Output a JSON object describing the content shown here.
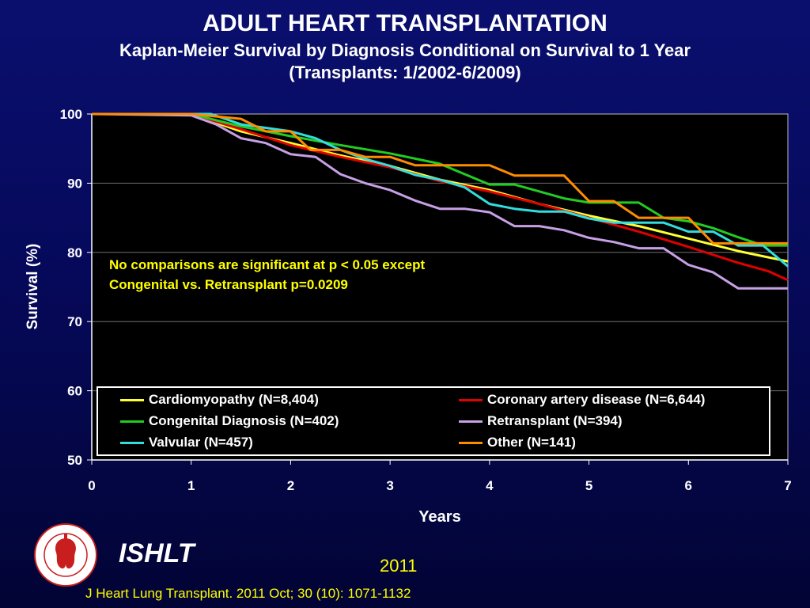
{
  "header": {
    "title": "ADULT HEART TRANSPLANTATION",
    "subtitle": "Kaplan-Meier Survival by Diagnosis Conditional on Survival to 1 Year",
    "subtitle2": "(Transplants: 1/2002-6/2009)"
  },
  "chart_data": {
    "type": "line",
    "xlabel": "Years",
    "ylabel": "Survival (%)",
    "xlim": [
      0,
      7
    ],
    "ylim": [
      50,
      100
    ],
    "xticks": [
      0,
      1,
      2,
      3,
      4,
      5,
      6,
      7
    ],
    "yticks": [
      50,
      60,
      70,
      80,
      90,
      100
    ],
    "grid": "horizontal",
    "legend_placement": "bottom",
    "annotation": [
      "No comparisons are significant at p < 0.05 except",
      "Congenital vs. Retransplant p=0.0209"
    ],
    "series": [
      {
        "name": "Cardiomyopathy  (N=8,404)",
        "color": "#ffff33",
        "x": [
          0,
          1,
          1.5,
          2,
          2.5,
          3,
          3.5,
          4,
          4.5,
          5,
          5.5,
          6,
          6.5,
          7
        ],
        "y": [
          100,
          100,
          97.5,
          95.8,
          94,
          92.5,
          90.5,
          89,
          87,
          85.3,
          83.8,
          82,
          80.2,
          78.7
        ]
      },
      {
        "name": "Coronary artery disease (N=6,644)",
        "color": "#e00000",
        "x": [
          0,
          1,
          1.5,
          2,
          2.5,
          3,
          3.5,
          4,
          4.5,
          5,
          5.5,
          6,
          6.5,
          6.8,
          7
        ],
        "y": [
          100,
          100,
          97.8,
          95.5,
          93.8,
          92.3,
          90.3,
          88.8,
          87,
          85,
          83,
          80.8,
          78.5,
          77.3,
          76
        ]
      },
      {
        "name": "Congenital Diagnosis  (N=402)",
        "color": "#22cc22",
        "x": [
          0,
          1,
          1.5,
          2,
          2.5,
          3,
          3.5,
          4,
          4.25,
          4.75,
          5,
          5.25,
          5.5,
          5.75,
          6,
          6.25,
          6.5,
          6.75,
          7
        ],
        "y": [
          100,
          100,
          98.2,
          96.8,
          95.5,
          94.3,
          92.8,
          89.8,
          89.8,
          87.8,
          87.2,
          87.2,
          87.2,
          85,
          84.5,
          83.5,
          82.2,
          81,
          81
        ]
      },
      {
        "name": "Retransplant (N=394)",
        "color": "#c8a0e6",
        "x": [
          0,
          1,
          1.25,
          1.5,
          1.75,
          2,
          2.25,
          2.5,
          2.75,
          3,
          3.25,
          3.5,
          3.75,
          4,
          4.25,
          4.5,
          4.75,
          5,
          5.25,
          5.5,
          5.75,
          6,
          6.25,
          6.5,
          6.75,
          7
        ],
        "y": [
          100,
          99.8,
          98.5,
          96.5,
          95.8,
          94.2,
          93.8,
          91.3,
          90,
          89,
          87.5,
          86.3,
          86.3,
          85.8,
          83.8,
          83.8,
          83.2,
          82.1,
          81.5,
          80.6,
          80.6,
          78.2,
          77.1,
          74.8,
          74.8,
          74.8
        ]
      },
      {
        "name": "Valvular (N=457)",
        "color": "#33dddd",
        "x": [
          0,
          1.2,
          1.5,
          2,
          2.25,
          2.5,
          2.75,
          3,
          3.25,
          3.5,
          3.75,
          4,
          4.25,
          4.5,
          4.75,
          5,
          5.25,
          5.5,
          5.75,
          6,
          6.25,
          6.5,
          6.75,
          7
        ],
        "y": [
          100,
          100,
          98.5,
          97.5,
          96.5,
          94.8,
          93.5,
          92.5,
          91.2,
          90.5,
          89.4,
          87,
          86.3,
          85.9,
          85.9,
          84.9,
          84.3,
          84.3,
          84.3,
          83,
          83,
          81,
          81,
          78
        ]
      },
      {
        "name": "Other (N=141)",
        "color": "#ff8c00",
        "x": [
          0,
          1,
          1.5,
          1.75,
          2.0,
          2.2,
          2.5,
          2.75,
          3.0,
          3.25,
          3.5,
          3.75,
          4.0,
          4.25,
          4.5,
          4.75,
          5.0,
          5.25,
          5.5,
          5.75,
          6.0,
          6.25,
          6.5,
          7
        ],
        "y": [
          100,
          100,
          99.3,
          97.5,
          97.5,
          94.8,
          94.8,
          93.8,
          93.8,
          92.6,
          92.6,
          92.6,
          92.6,
          91.1,
          91.1,
          91.1,
          87.4,
          87.4,
          85,
          85,
          85,
          81.3,
          81.3,
          81.3
        ]
      }
    ]
  },
  "footer": {
    "ishlt": "ISHLT",
    "year": "2011",
    "citation": "J Heart Lung Transplant. 2011 Oct; 30 (10): 1071-1132",
    "logo_text": "INTERNATIONAL SOCIETY FOR HEART & LUNG TRANSPLANTATION"
  }
}
